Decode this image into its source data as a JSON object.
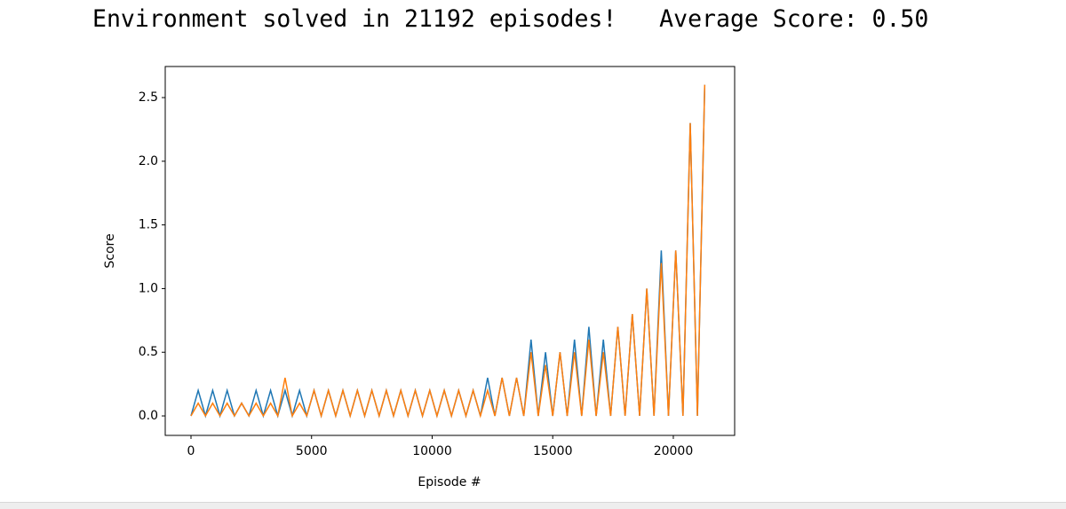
{
  "output_text": "Environment solved in 21192 episodes!   Average Score: 0.50",
  "chart_data": {
    "type": "line",
    "xlabel": "Episode #",
    "ylabel": "Score",
    "x": [
      0,
      300,
      600,
      900,
      1200,
      1500,
      1800,
      2100,
      2400,
      2700,
      3000,
      3300,
      3600,
      3900,
      4200,
      4500,
      4800,
      5100,
      5400,
      5700,
      6000,
      6300,
      6600,
      6900,
      7200,
      7500,
      7800,
      8100,
      8400,
      8700,
      9000,
      9300,
      9600,
      9900,
      10200,
      10500,
      10800,
      11100,
      11400,
      11700,
      12000,
      12300,
      12600,
      12900,
      13200,
      13500,
      13800,
      14100,
      14400,
      14700,
      15000,
      15300,
      15600,
      15900,
      16200,
      16500,
      16800,
      17100,
      17400,
      17700,
      18000,
      18300,
      18600,
      18900,
      19200,
      19500,
      19800,
      20100,
      20400,
      20700,
      21000,
      21300
    ],
    "series": [
      {
        "color": "#1f77b4",
        "values": [
          0,
          0.2,
          0,
          0.2,
          0,
          0.2,
          0,
          0.1,
          0,
          0.2,
          0,
          0.2,
          0,
          0.2,
          0,
          0.2,
          0,
          0.2,
          0,
          0.2,
          0,
          0.2,
          0,
          0.2,
          0,
          0.2,
          0,
          0.2,
          0,
          0.2,
          0,
          0.2,
          0,
          0.2,
          0,
          0.2,
          0,
          0.2,
          0,
          0.2,
          0,
          0.3,
          0,
          0.3,
          0,
          0.3,
          0,
          0.6,
          0,
          0.5,
          0,
          0.5,
          0,
          0.6,
          0,
          0.7,
          0,
          0.6,
          0,
          0.7,
          0,
          0.8,
          0,
          1.0,
          0,
          1.3,
          0,
          1.3,
          0,
          2.3,
          0,
          2.6
        ]
      },
      {
        "color": "#ff7f0e",
        "values": [
          0,
          0.1,
          0,
          0.1,
          0,
          0.1,
          0,
          0.1,
          0,
          0.1,
          0,
          0.1,
          0,
          0.3,
          0,
          0.1,
          0,
          0.2,
          0,
          0.2,
          0,
          0.2,
          0,
          0.2,
          0,
          0.2,
          0,
          0.2,
          0,
          0.2,
          0,
          0.2,
          0,
          0.2,
          0,
          0.2,
          0,
          0.2,
          0,
          0.2,
          0,
          0.2,
          0,
          0.3,
          0,
          0.3,
          0,
          0.5,
          0,
          0.4,
          0,
          0.5,
          0,
          0.5,
          0,
          0.6,
          0,
          0.5,
          0,
          0.7,
          0,
          0.8,
          0,
          1.0,
          0,
          1.2,
          0,
          1.3,
          0,
          2.3,
          0,
          2.6
        ]
      }
    ],
    "xlim": [
      -1068,
      22543
    ],
    "xticks": [
      0,
      5000,
      10000,
      15000,
      20000
    ],
    "ylim": [
      -0.153,
      2.744
    ],
    "yticks": [
      {
        "value": 0,
        "label": "0.0"
      },
      {
        "value": 0.5,
        "label": "0.5"
      },
      {
        "value": 1,
        "label": "1.0"
      },
      {
        "value": 1.5,
        "label": "1.5"
      },
      {
        "value": 2,
        "label": "2.0"
      },
      {
        "value": 2.5,
        "label": "2.5"
      }
    ],
    "grid": false
  }
}
